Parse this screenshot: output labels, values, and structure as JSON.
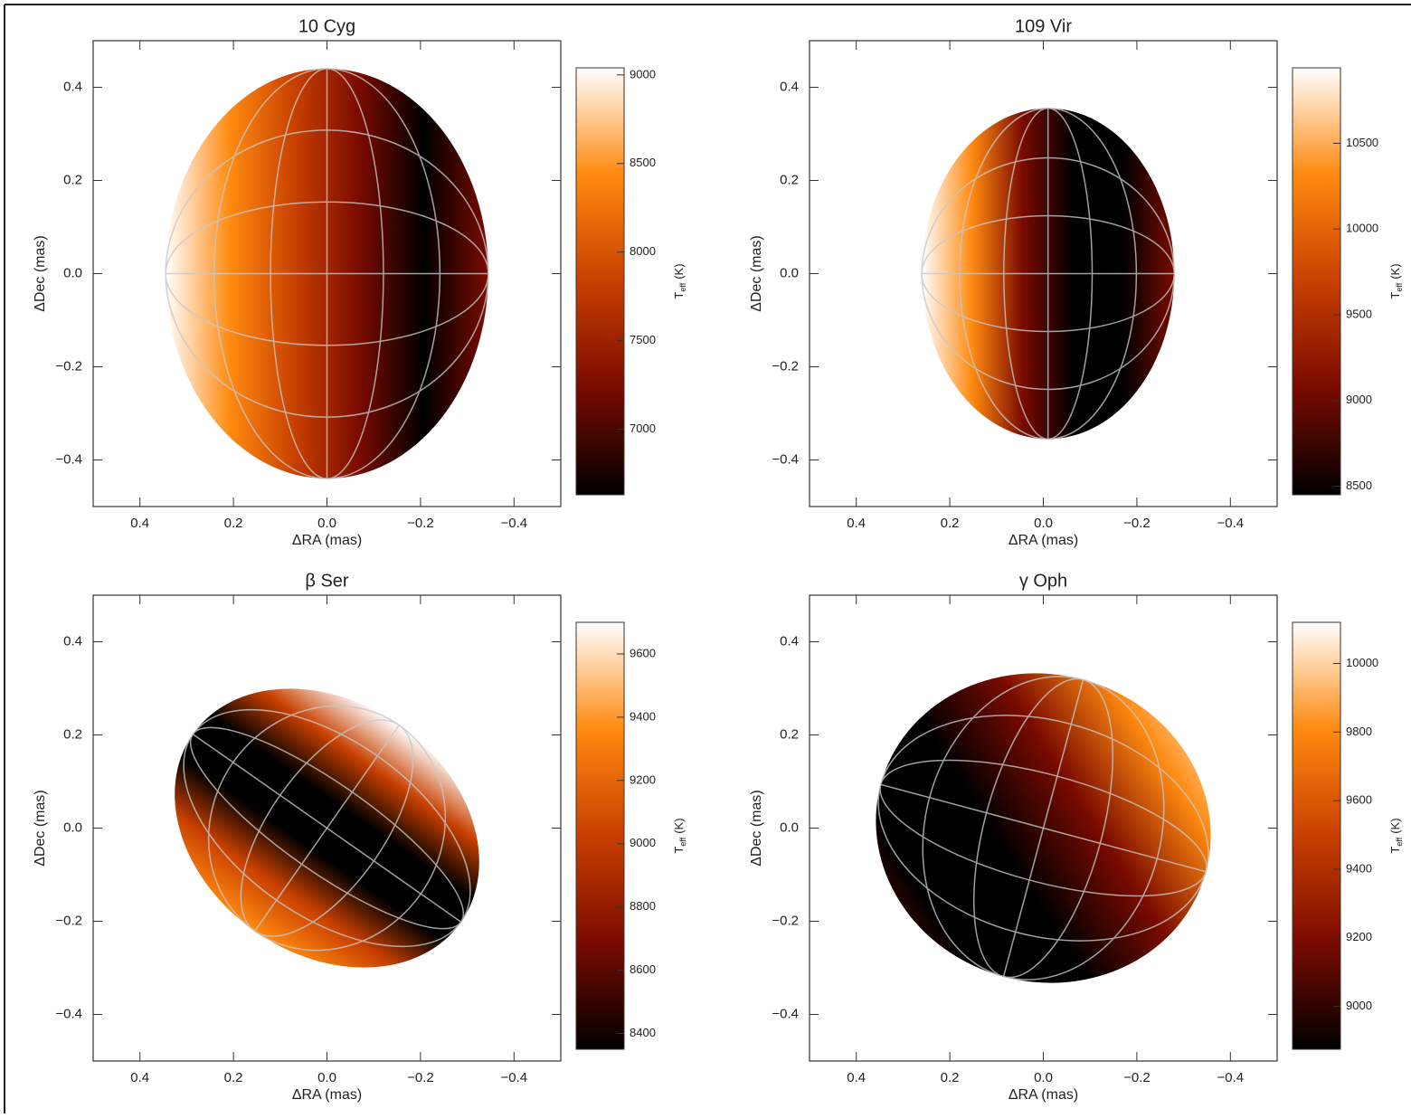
{
  "chart_data": [
    {
      "type": "image",
      "title": "10 Cyg",
      "xlabel": "ΔRA (mas)",
      "ylabel": "ΔDec (mas)",
      "xlim": [
        0.5,
        -0.5
      ],
      "ylim": [
        -0.5,
        0.5
      ],
      "xticks": [
        0.4,
        0.2,
        {
          "value": 0,
          "label": "0.0"
        },
        {
          "value": -0.2,
          "label": "−0.2"
        },
        {
          "value": -0.4,
          "label": "−0.4"
        }
      ],
      "yticks": [
        {
          "value": -0.4,
          "label": "−0.4"
        },
        {
          "value": -0.2,
          "label": "−0.2"
        },
        {
          "value": 0,
          "label": "0.0"
        },
        0.2,
        0.4
      ],
      "colormap": [
        "#000000",
        "#7a0a00",
        "#c84000",
        "#ff8a10",
        "#ffffff"
      ],
      "disk": {
        "center": [
          0.0,
          0.0
        ],
        "radii": [
          0.345,
          0.44
        ],
        "angle": 0
      },
      "colorbar": {
        "lim": [
          6630,
          9040
        ],
        "ticks": [
          7000,
          7500,
          8000,
          8500,
          9000
        ],
        "label": {
          "symbol": "T",
          "subscript": "eff",
          "unit": "(K)"
        }
      }
    },
    {
      "type": "image",
      "title": "109 Vir",
      "xlabel": "ΔRA (mas)",
      "ylabel": "ΔDec (mas)",
      "xlim": [
        0.5,
        -0.5
      ],
      "ylim": [
        -0.5,
        0.5
      ],
      "xticks": [
        0.4,
        0.2,
        {
          "value": 0,
          "label": "0.0"
        },
        {
          "value": -0.2,
          "label": "−0.2"
        },
        {
          "value": -0.4,
          "label": "−0.4"
        }
      ],
      "yticks": [
        {
          "value": -0.4,
          "label": "−0.4"
        },
        {
          "value": -0.2,
          "label": "−0.2"
        },
        {
          "value": 0,
          "label": "0.0"
        },
        0.2,
        0.4
      ],
      "colormap": [
        "#000000",
        "#7a0a00",
        "#c84000",
        "#ff8a10",
        "#ffffff"
      ],
      "disk": {
        "center": [
          -0.01,
          0.0
        ],
        "radii": [
          0.27,
          0.355
        ],
        "angle": 0
      },
      "colorbar": {
        "lim": [
          8450,
          10940
        ],
        "ticks": [
          8500,
          9000,
          9500,
          10000,
          10500
        ],
        "label": {
          "symbol": "T",
          "subscript": "eff",
          "unit": "(K)"
        }
      }
    },
    {
      "type": "image",
      "title": "β Ser",
      "xlabel": "ΔRA (mas)",
      "ylabel": "ΔDec (mas)",
      "xlim": [
        0.5,
        -0.5
      ],
      "ylim": [
        -0.5,
        0.5
      ],
      "xticks": [
        0.4,
        0.2,
        {
          "value": 0,
          "label": "0.0"
        },
        {
          "value": -0.2,
          "label": "−0.2"
        },
        {
          "value": -0.4,
          "label": "−0.4"
        }
      ],
      "yticks": [
        {
          "value": -0.4,
          "label": "−0.4"
        },
        {
          "value": -0.2,
          "label": "−0.2"
        },
        {
          "value": 0,
          "label": "0.0"
        },
        0.2,
        0.4
      ],
      "colormap": [
        "#000000",
        "#7a0a00",
        "#c84000",
        "#ff8a10",
        "#ffffff"
      ],
      "disk": {
        "center": [
          0.0,
          0.0
        ],
        "radii": [
          0.35,
          0.27
        ],
        "angle": 35
      },
      "colorbar": {
        "lim": [
          8350,
          9700
        ],
        "ticks": [
          8400,
          8600,
          8800,
          9000,
          9200,
          9400,
          9600
        ],
        "label": {
          "symbol": "T",
          "subscript": "eff",
          "unit": "(K)"
        }
      }
    },
    {
      "type": "image",
      "title": "γ Oph",
      "xlabel": "ΔRA (mas)",
      "ylabel": "ΔDec (mas)",
      "xlim": [
        0.5,
        -0.5
      ],
      "ylim": [
        -0.5,
        0.5
      ],
      "xticks": [
        0.4,
        0.2,
        {
          "value": 0,
          "label": "0.0"
        },
        {
          "value": -0.2,
          "label": "−0.2"
        },
        {
          "value": -0.4,
          "label": "−0.4"
        }
      ],
      "yticks": [
        {
          "value": -0.4,
          "label": "−0.4"
        },
        {
          "value": -0.2,
          "label": "−0.2"
        },
        {
          "value": 0,
          "label": "0.0"
        },
        0.2,
        0.4
      ],
      "colormap": [
        "#000000",
        "#7a0a00",
        "#c84000",
        "#ff8a10",
        "#ffffff"
      ],
      "disk": {
        "center": [
          0.0,
          0.0
        ],
        "radii": [
          0.36,
          0.33
        ],
        "angle": 15
      },
      "colorbar": {
        "lim": [
          8875,
          10120
        ],
        "ticks": [
          9000,
          9200,
          9400,
          9600,
          9800,
          10000
        ],
        "label": {
          "symbol": "T",
          "subscript": "eff",
          "unit": "(K)"
        }
      }
    }
  ]
}
